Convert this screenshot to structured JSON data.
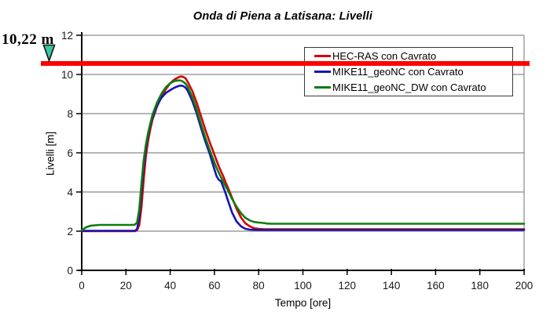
{
  "title": "Onda di Piena a Latisana: Livelli",
  "annotation": {
    "label": "10,22 m",
    "level_value": 10.22,
    "line_color": "#fe0000",
    "triangle_fill": "#3cc6a0",
    "triangle_stroke": "#101418"
  },
  "legend": {
    "items": [
      {
        "label": "HEC-RAS con Cavrato",
        "color": "#d60000"
      },
      {
        "label": "MIKE11_geoNC con Cavrato",
        "color": "#1414b4"
      },
      {
        "label": "MIKE11_geoNC_DW con Cavrato",
        "color": "#0d7d0d"
      }
    ]
  },
  "chart_data": {
    "type": "line",
    "title": "Onda di Piena a Latisana: Livelli",
    "xlabel": "Tempo [ore]",
    "ylabel": "Livelli [m]",
    "xlim": [
      0,
      200
    ],
    "ylim": [
      0,
      12
    ],
    "x_ticks": [
      0,
      20,
      40,
      60,
      80,
      100,
      120,
      140,
      160,
      180,
      200
    ],
    "y_ticks": [
      0,
      2,
      4,
      6,
      8,
      10,
      12
    ],
    "grid": "horizontal",
    "gridline_color": "#8a8a8a",
    "legend_position": "top-right-inside",
    "reference_line": {
      "label": "10,22 m",
      "value": 10.22,
      "drawn_at": 10.6,
      "color": "#fe0000"
    },
    "x": [
      0,
      2,
      4,
      6,
      8,
      10,
      12,
      14,
      16,
      18,
      20,
      22,
      24,
      25,
      26,
      27,
      28,
      29,
      30,
      31,
      32,
      34,
      36,
      38,
      40,
      42,
      44,
      45,
      46,
      47,
      48,
      50,
      52,
      54,
      56,
      58,
      60,
      61,
      62,
      63,
      64,
      65,
      66,
      68,
      70,
      72,
      74,
      76,
      78,
      80,
      82,
      84,
      86,
      88,
      90,
      95,
      100,
      110,
      120,
      130,
      140,
      150,
      160,
      170,
      180,
      190,
      200
    ],
    "series": [
      {
        "name": "HEC-RAS con Cavrato",
        "color": "#d60000",
        "values": [
          2.0,
          2.0,
          2.0,
          2.0,
          2.0,
          2.0,
          2.0,
          2.0,
          2.0,
          2.0,
          2.0,
          2.0,
          2.0,
          2.05,
          2.3,
          3.2,
          4.6,
          5.8,
          6.6,
          7.2,
          7.7,
          8.35,
          8.85,
          9.25,
          9.55,
          9.75,
          9.87,
          9.9,
          9.87,
          9.8,
          9.6,
          9.15,
          8.55,
          7.85,
          7.15,
          6.5,
          5.9,
          5.6,
          5.3,
          5.05,
          4.8,
          4.5,
          4.25,
          3.7,
          3.15,
          2.7,
          2.4,
          2.25,
          2.15,
          2.12,
          2.1,
          2.1,
          2.1,
          2.1,
          2.1,
          2.1,
          2.1,
          2.1,
          2.1,
          2.1,
          2.1,
          2.1,
          2.1,
          2.1,
          2.1,
          2.1,
          2.1
        ]
      },
      {
        "name": "MIKE11_geoNC con Cavrato",
        "color": "#1414b4",
        "values": [
          2.02,
          2.02,
          2.02,
          2.02,
          2.02,
          2.02,
          2.02,
          2.02,
          2.02,
          2.02,
          2.02,
          2.02,
          2.02,
          2.1,
          2.7,
          4.0,
          5.3,
          6.2,
          6.9,
          7.4,
          7.8,
          8.4,
          8.8,
          9.05,
          9.2,
          9.33,
          9.42,
          9.43,
          9.4,
          9.32,
          9.15,
          8.65,
          8.0,
          7.25,
          6.55,
          5.9,
          5.15,
          4.8,
          4.62,
          4.55,
          4.25,
          3.95,
          3.6,
          2.95,
          2.5,
          2.25,
          2.12,
          2.08,
          2.07,
          2.06,
          2.06,
          2.06,
          2.06,
          2.06,
          2.06,
          2.06,
          2.06,
          2.06,
          2.06,
          2.06,
          2.06,
          2.06,
          2.06,
          2.06,
          2.06,
          2.06,
          2.06
        ]
      },
      {
        "name": "MIKE11_geoNC_DW con Cavrato",
        "color": "#0d7d0d",
        "values": [
          2.05,
          2.2,
          2.28,
          2.3,
          2.32,
          2.32,
          2.32,
          2.32,
          2.32,
          2.32,
          2.32,
          2.32,
          2.33,
          2.45,
          3.1,
          4.4,
          5.6,
          6.4,
          7.0,
          7.5,
          7.95,
          8.55,
          9.0,
          9.35,
          9.55,
          9.67,
          9.7,
          9.68,
          9.62,
          9.52,
          9.35,
          8.85,
          8.2,
          7.45,
          6.75,
          6.1,
          5.5,
          5.22,
          4.98,
          4.75,
          4.52,
          4.3,
          4.1,
          3.65,
          3.25,
          2.92,
          2.68,
          2.55,
          2.47,
          2.44,
          2.42,
          2.39,
          2.38,
          2.38,
          2.38,
          2.38,
          2.38,
          2.38,
          2.38,
          2.38,
          2.38,
          2.38,
          2.38,
          2.38,
          2.38,
          2.38,
          2.38
        ]
      }
    ]
  }
}
